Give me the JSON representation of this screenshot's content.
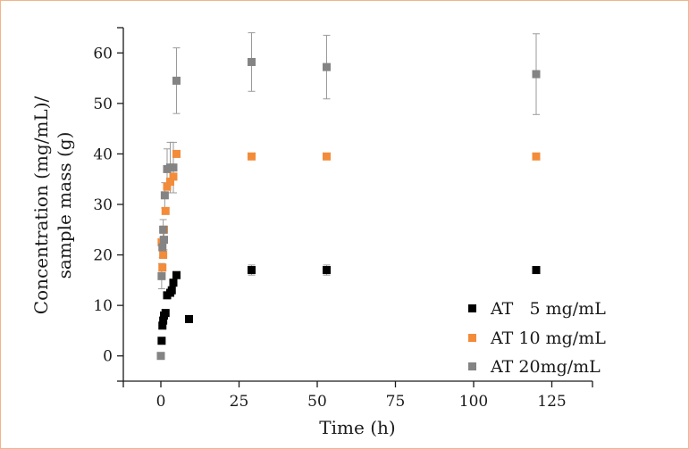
{
  "chart_data": {
    "type": "scatter",
    "title": "",
    "xlabel": "Time (h)",
    "ylabel_lines": [
      "Concentration (mg/mL)/",
      "sample mass (g)"
    ],
    "xlim": [
      -12,
      138
    ],
    "ylim": [
      -5,
      65
    ],
    "x_ticks": [
      0,
      25,
      50,
      75,
      100,
      125
    ],
    "y_ticks": [
      0,
      10,
      20,
      30,
      40,
      50,
      60
    ],
    "x_tick_labels": [
      "0",
      "25",
      "50",
      "75",
      "100",
      "125"
    ],
    "y_tick_labels": [
      "0",
      "10",
      "20",
      "30",
      "40",
      "50",
      "60"
    ],
    "grid": false,
    "legend_position": "bottom-right",
    "series": [
      {
        "name": "AT   5 mg/mL",
        "color": "#000000",
        "points": [
          {
            "x": 0.25,
            "y": 3.0
          },
          {
            "x": 0.5,
            "y": 6.0
          },
          {
            "x": 0.75,
            "y": 7.0
          },
          {
            "x": 1,
            "y": 8.0
          },
          {
            "x": 1.5,
            "y": 8.5
          },
          {
            "x": 2,
            "y": 12.0
          },
          {
            "x": 3,
            "y": 12.5
          },
          {
            "x": 3.5,
            "y": 13.0
          },
          {
            "x": 4,
            "y": 14.5
          },
          {
            "x": 5,
            "y": 16.0
          },
          {
            "x": 9,
            "y": 7.3
          },
          {
            "x": 29,
            "y": 17.0,
            "err": 1.0
          },
          {
            "x": 53,
            "y": 17.0,
            "err": 1.0
          },
          {
            "x": 120,
            "y": 17.0
          }
        ]
      },
      {
        "name": "AT 10 mg/mL",
        "color": "#f28c3a",
        "points": [
          {
            "x": 0.25,
            "y": 22.5
          },
          {
            "x": 0.5,
            "y": 17.5
          },
          {
            "x": 0.75,
            "y": 20.0
          },
          {
            "x": 1,
            "y": 25.0
          },
          {
            "x": 1.5,
            "y": 28.7
          },
          {
            "x": 2,
            "y": 33.5
          },
          {
            "x": 3,
            "y": 34.5
          },
          {
            "x": 4,
            "y": 35.5
          },
          {
            "x": 5,
            "y": 40.0
          },
          {
            "x": 29,
            "y": 39.5
          },
          {
            "x": 53,
            "y": 39.5
          },
          {
            "x": 120,
            "y": 39.5
          }
        ]
      },
      {
        "name": "AT 20mg/mL",
        "color": "#848484",
        "points": [
          {
            "x": 0,
            "y": 0.0
          },
          {
            "x": 0.25,
            "y": 15.8,
            "err": 2.5
          },
          {
            "x": 0.5,
            "y": 21.5,
            "err": 2.0
          },
          {
            "x": 0.75,
            "y": 25.0,
            "err": 2.0
          },
          {
            "x": 1,
            "y": 23.0,
            "err": 2.0
          },
          {
            "x": 1.25,
            "y": 31.8,
            "err": 2.5
          },
          {
            "x": 2,
            "y": 37.0,
            "err": 4.0
          },
          {
            "x": 3,
            "y": 37.3,
            "err": 5.0
          },
          {
            "x": 4,
            "y": 37.3,
            "err": 5.0
          },
          {
            "x": 5,
            "y": 54.5,
            "err": 6.5
          },
          {
            "x": 29,
            "y": 58.2,
            "err": 5.8
          },
          {
            "x": 53,
            "y": 57.2,
            "err": 6.3
          },
          {
            "x": 120,
            "y": 55.8,
            "err": 8.0
          }
        ]
      }
    ]
  }
}
